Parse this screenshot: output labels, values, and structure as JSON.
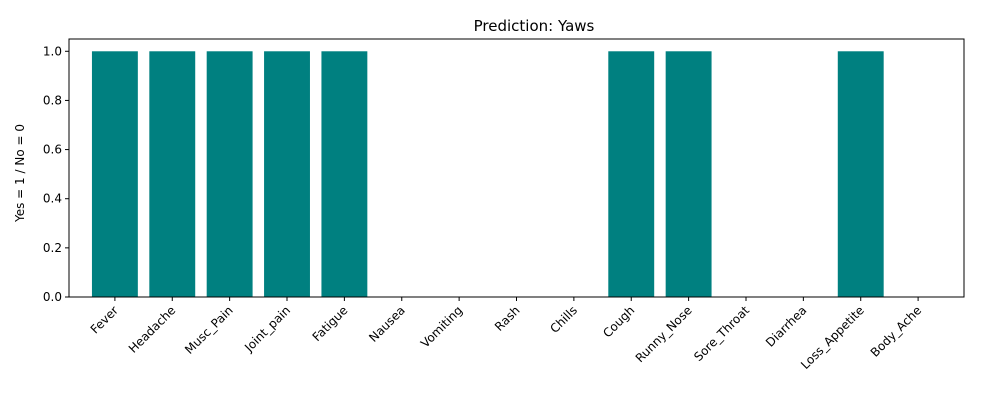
{
  "chart_data": {
    "type": "bar",
    "title": "Prediction: Yaws",
    "xlabel": "",
    "ylabel": "Yes = 1 / No = 0",
    "categories": [
      "Fever",
      "Headache",
      "Musc_Pain",
      "Joint_pain",
      "Fatigue",
      "Nausea",
      "Vomiting",
      "Rash",
      "Chills",
      "Cough",
      "Runny_Nose",
      "Sore_Throat",
      "Diarrhea",
      "Loss_Appetite",
      "Body_Ache"
    ],
    "values": [
      1,
      1,
      1,
      1,
      1,
      0,
      0,
      0,
      0,
      1,
      1,
      0,
      0,
      1,
      0
    ],
    "ylim": [
      0,
      1.05
    ],
    "yticks": [
      "0.0",
      "0.2",
      "0.4",
      "0.6",
      "0.8",
      "1.0"
    ],
    "bar_color": "#008080",
    "grid": false,
    "legend": "none"
  }
}
